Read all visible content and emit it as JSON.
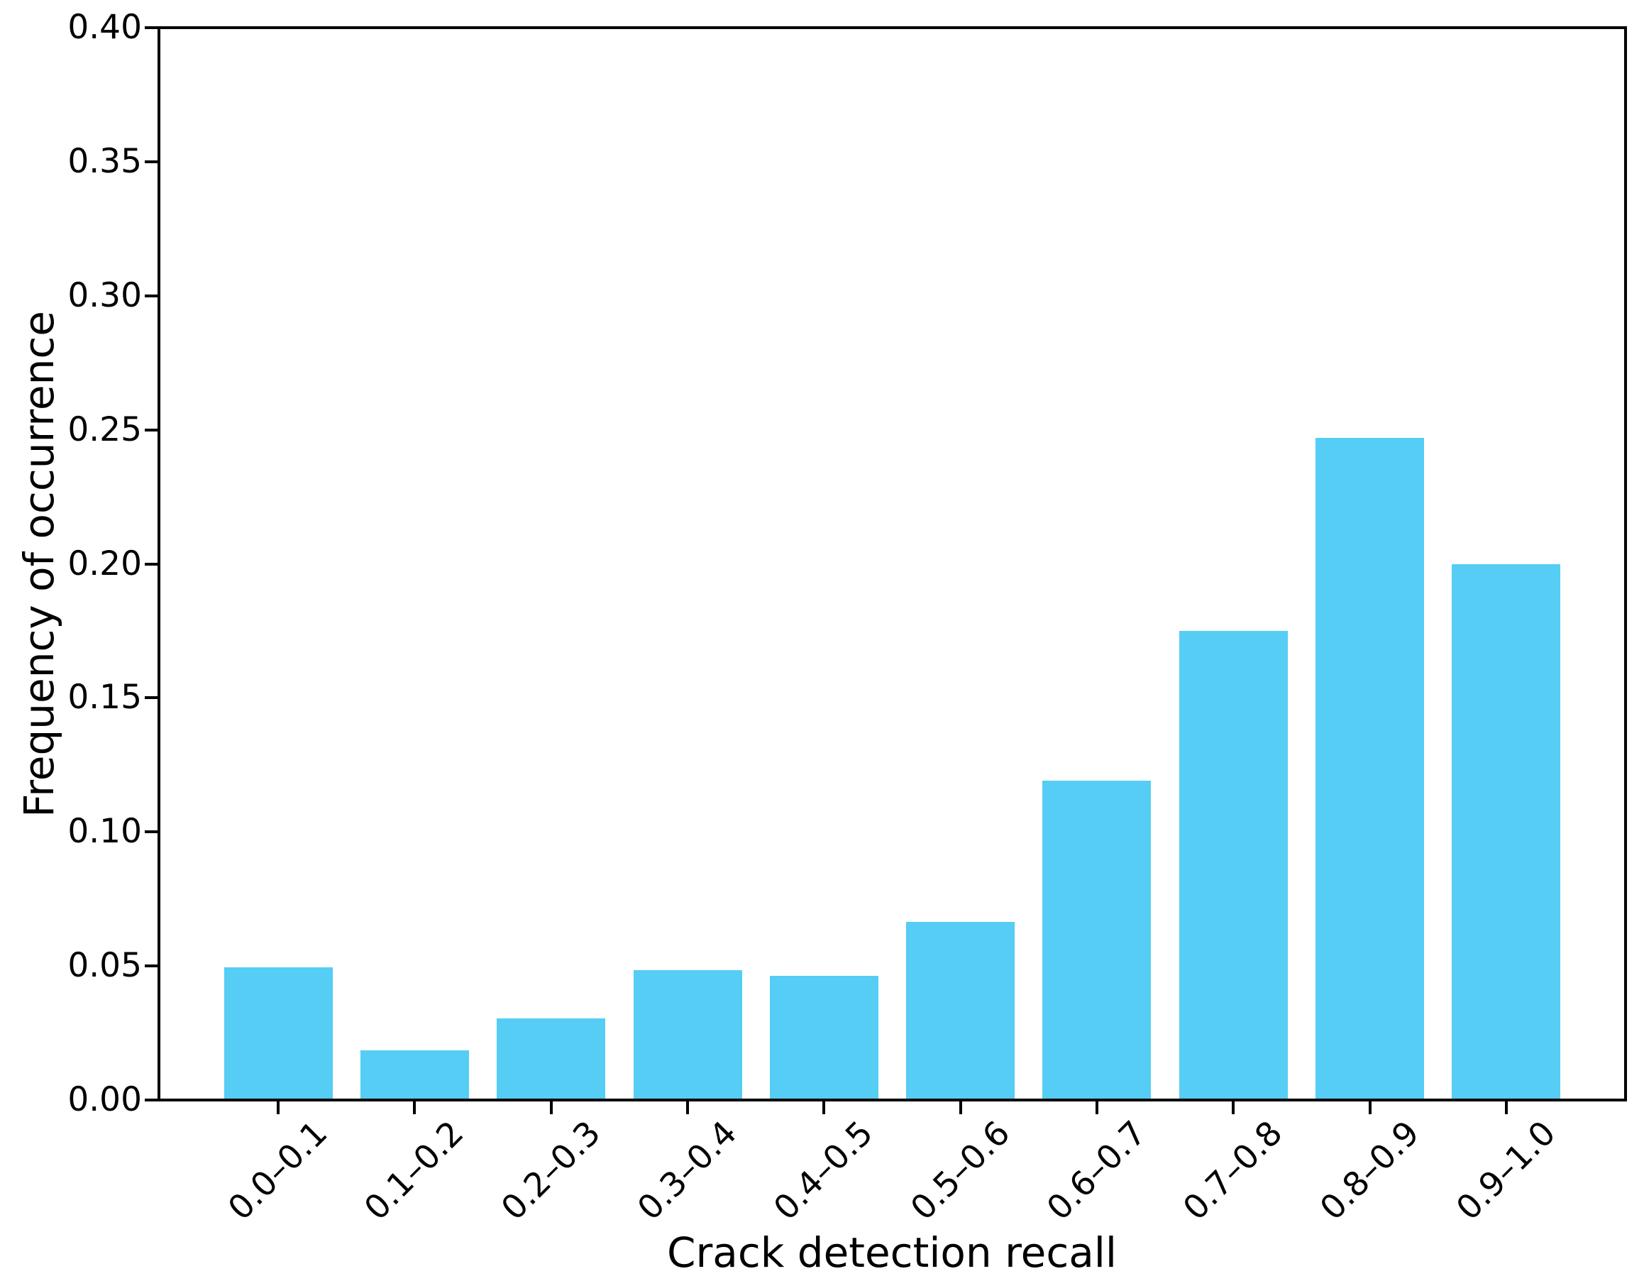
{
  "figure": {
    "background": "#ffffff",
    "bar_color": "#55cdf4",
    "axis_color": "#000000",
    "text_color": "#000000"
  },
  "chart_data": {
    "type": "bar",
    "title": "",
    "xlabel": "Crack detection recall",
    "ylabel": "Frequency of occurrence",
    "categories": [
      "0.0–0.1",
      "0.1–0.2",
      "0.2–0.3",
      "0.3–0.4",
      "0.4–0.5",
      "0.5–0.6",
      "0.6–0.7",
      "0.7–0.8",
      "0.8–0.9",
      "0.9–1.0"
    ],
    "values": [
      0.049,
      0.018,
      0.03,
      0.048,
      0.046,
      0.066,
      0.119,
      0.175,
      0.247,
      0.2
    ],
    "ylim": [
      0.0,
      0.4
    ],
    "yticks": [
      0.0,
      0.05,
      0.1,
      0.15,
      0.2,
      0.25,
      0.3,
      0.35,
      0.4
    ],
    "ytick_labels": [
      "0.00",
      "0.05",
      "0.10",
      "0.15",
      "0.20",
      "0.25",
      "0.30",
      "0.35",
      "0.40"
    ],
    "xtick_label_rotation_deg": 45,
    "grid": false,
    "legend": null
  }
}
